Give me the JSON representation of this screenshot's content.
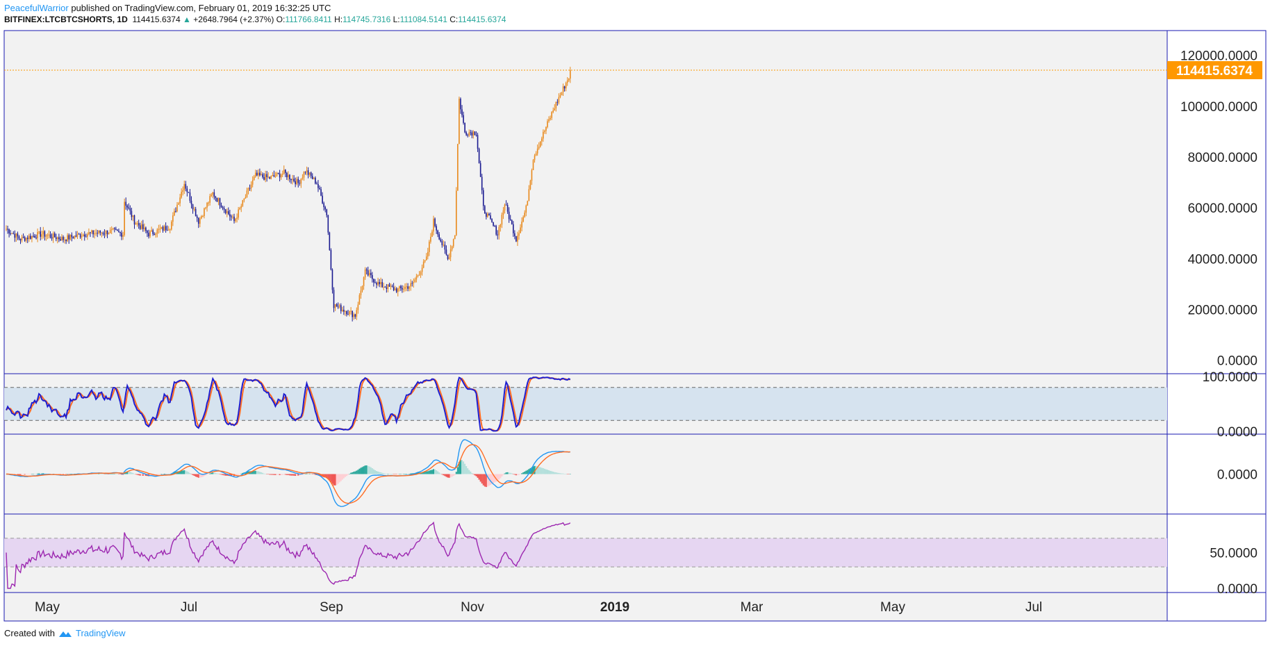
{
  "header": {
    "author": "PeacefulWarrior",
    "published_text": " published on TradingView.com, February 01, 2019 16:32:25 UTC",
    "symbol": "BITFINEX:LTCBTCSHORTS, 1D",
    "last": "114415.6374",
    "change": "+2648.7964 (+2.37%)",
    "o_label": "O:",
    "o_value": "111766.8411",
    "h_label": "H:",
    "h_value": "114745.7316",
    "l_label": "L:",
    "l_value": "111084.5141",
    "c_label": "C:",
    "c_value": "114415.6374"
  },
  "footer": {
    "created_with": "Created with",
    "brand": "TradingView"
  },
  "colors": {
    "background": "#f2f2f2",
    "frame": "#1a1ab0",
    "bull": "#e8881a",
    "bear": "#1a1a90",
    "price_line": "#ff9800",
    "stoch_k": "#1f1fcf",
    "stoch_d": "#ff6d24",
    "macd": "#2196f3",
    "signal": "#ff6d24",
    "hist_pos_strong": "#26a69a",
    "hist_pos_weak": "#b2dfdb",
    "hist_neg_strong": "#ef5350",
    "hist_neg_weak": "#ffcdd2",
    "rsi": "#9c27b0",
    "rsi_band": "#e6d6f2",
    "stoch_band": "#d6e3ef"
  },
  "chart_data": {
    "type": "candlestick",
    "price": {
      "ylim": [
        -5000,
        130000
      ],
      "yticks": [
        {
          "v": 0,
          "label": "0.0000"
        },
        {
          "v": 20000,
          "label": "20000.0000"
        },
        {
          "v": 40000,
          "label": "40000.0000"
        },
        {
          "v": 60000,
          "label": "60000.0000"
        },
        {
          "v": 80000,
          "label": "80000.0000"
        },
        {
          "v": 100000,
          "label": "100000.0000"
        },
        {
          "v": 120000,
          "label": "120000.0000"
        }
      ],
      "last_value": 114415.6374,
      "last_label": "114415.6374",
      "anchors": [
        [
          0,
          52000
        ],
        [
          10,
          48000
        ],
        [
          25,
          50000
        ],
        [
          40,
          48000
        ],
        [
          55,
          50000
        ],
        [
          75,
          51000
        ],
        [
          82,
          50000
        ],
        [
          83,
          63000
        ],
        [
          90,
          55000
        ],
        [
          100,
          50000
        ],
        [
          115,
          53000
        ],
        [
          125,
          70000
        ],
        [
          135,
          55000
        ],
        [
          145,
          66000
        ],
        [
          160,
          55000
        ],
        [
          175,
          73000
        ],
        [
          185,
          72000
        ],
        [
          195,
          74000
        ],
        [
          205,
          70000
        ],
        [
          210,
          75000
        ],
        [
          218,
          70000
        ],
        [
          225,
          58000
        ],
        [
          230,
          22000
        ],
        [
          245,
          18000
        ],
        [
          252,
          35000
        ],
        [
          262,
          30000
        ],
        [
          275,
          28000
        ],
        [
          285,
          30000
        ],
        [
          295,
          40000
        ],
        [
          300,
          55000
        ],
        [
          310,
          40000
        ],
        [
          315,
          50000
        ],
        [
          318,
          103000
        ],
        [
          322,
          90000
        ],
        [
          330,
          90000
        ],
        [
          335,
          60000
        ],
        [
          345,
          50000
        ],
        [
          350,
          62000
        ],
        [
          358,
          48000
        ],
        [
          365,
          60000
        ],
        [
          370,
          80000
        ],
        [
          385,
          100000
        ],
        [
          396,
          113000
        ]
      ]
    },
    "x_axis": {
      "ticks": [
        {
          "label": "May",
          "bold": false
        },
        {
          "label": "Jul",
          "bold": false
        },
        {
          "label": "Sep",
          "bold": false
        },
        {
          "label": "Nov",
          "bold": false
        },
        {
          "label": "2019",
          "bold": true
        },
        {
          "label": "Mar",
          "bold": false
        },
        {
          "label": "May",
          "bold": false
        },
        {
          "label": "Jul",
          "bold": false
        }
      ]
    },
    "stoch": {
      "ylim": [
        -5,
        105
      ],
      "yticks": [
        {
          "v": 0,
          "label": "0.0000"
        },
        {
          "v": 100,
          "label": "100.0000"
        }
      ],
      "band": [
        20,
        80
      ]
    },
    "macd": {
      "ylim": [
        -8000,
        8000
      ],
      "yticks": [
        {
          "v": 0,
          "label": "0.0000"
        }
      ]
    },
    "rsi": {
      "ylim": [
        0,
        100
      ],
      "yticks": [
        {
          "v": 0,
          "label": "0.0000"
        },
        {
          "v": 50,
          "label": "50.0000"
        }
      ],
      "band": [
        30,
        70
      ]
    }
  }
}
